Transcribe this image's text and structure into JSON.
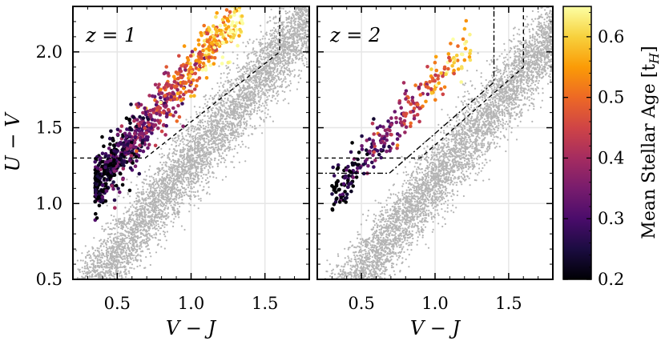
{
  "chart_data": [
    {
      "type": "scatter",
      "panel_label": "z = 1",
      "xlabel": "V − J",
      "ylabel": "U − V",
      "xlim": [
        0.2,
        1.8
      ],
      "ylim": [
        0.5,
        2.3
      ],
      "xticks": [
        0.5,
        1.0,
        1.5
      ],
      "yticks": [
        0.5,
        1.0,
        1.5,
        2.0
      ],
      "grid": true,
      "background_points": {
        "color": "#b4b4b4",
        "trend": "U−V ≈ 0.1 + 1.2·(V−J)",
        "approx_count": 6000
      },
      "colored_points": {
        "colormap": "inferno",
        "color_by": "Mean Stellar Age",
        "approx_count": 900,
        "concentrated_region": {
          "x": [
            0.3,
            1.4
          ],
          "y": [
            1.1,
            2.2
          ]
        }
      },
      "selection_lines": [
        {
          "style": "dashed",
          "points": [
            [
              0.2,
              1.3
            ],
            [
              0.69,
              1.3
            ],
            [
              1.6,
              2.0
            ],
            [
              1.6,
              2.3
            ]
          ]
        }
      ]
    },
    {
      "type": "scatter",
      "panel_label": "z = 2",
      "xlabel": "V − J",
      "ylabel": "",
      "xlim": [
        0.2,
        1.8
      ],
      "ylim": [
        0.5,
        2.3
      ],
      "xticks": [
        0.5,
        1.0,
        1.5
      ],
      "yticks": [
        0.5,
        1.0,
        1.5,
        2.0
      ],
      "grid": true,
      "background_points": {
        "color": "#b4b4b4",
        "trend": "U−V ≈ 0.0 + 1.2·(V−J)",
        "approx_count": 6000
      },
      "colored_points": {
        "colormap": "inferno",
        "color_by": "Mean Stellar Age",
        "approx_count": 300,
        "concentrated_region": {
          "x": [
            0.3,
            1.3
          ],
          "y": [
            1.1,
            2.1
          ]
        }
      },
      "selection_lines": [
        {
          "style": "dashed",
          "points": [
            [
              0.2,
              1.3
            ],
            [
              0.9,
              1.3
            ],
            [
              1.6,
              1.9
            ],
            [
              1.6,
              2.3
            ]
          ]
        },
        {
          "style": "dashdot",
          "points": [
            [
              0.2,
              1.2
            ],
            [
              0.69,
              1.2
            ],
            [
              1.4,
              1.8
            ],
            [
              1.4,
              2.3
            ]
          ]
        }
      ]
    }
  ],
  "colorbar": {
    "label": "Mean Stellar Age [t",
    "label_sub": "H",
    "label_close": "]",
    "colormap": "inferno",
    "range": [
      0.2,
      0.65
    ],
    "ticks": [
      "0.2",
      "0.3",
      "0.4",
      "0.5",
      "0.6"
    ],
    "tick_values": [
      0.2,
      0.3,
      0.4,
      0.5,
      0.6
    ]
  },
  "colors": {
    "background_points": "#b4b4b4",
    "grid": "#e6e6e6",
    "inferno_stops": [
      "#000004",
      "#1b0c41",
      "#4a0c6b",
      "#781c6d",
      "#a52c60",
      "#cf4446",
      "#ed6925",
      "#fb9b06",
      "#f7d13d",
      "#fcffa4"
    ]
  }
}
